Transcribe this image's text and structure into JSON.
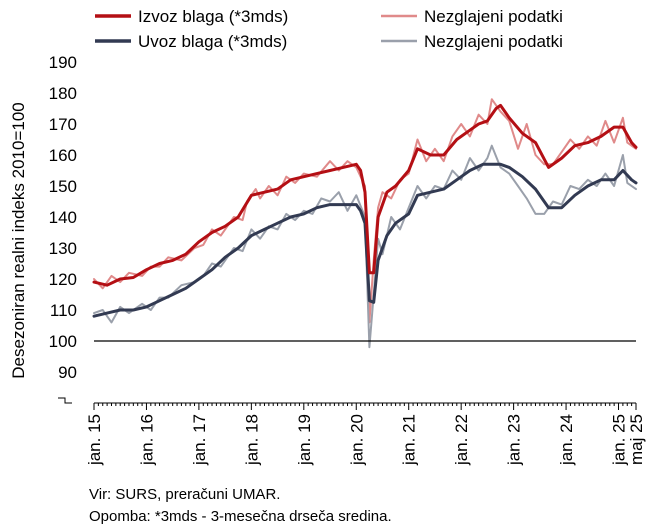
{
  "chart_data": {
    "type": "line",
    "xlabel": "",
    "ylabel": "Desezoniran realni indeks 2010=100",
    "ylim": [
      80,
      190
    ],
    "y_ticks": [
      90,
      100,
      110,
      120,
      130,
      140,
      150,
      160,
      170,
      180,
      190
    ],
    "y_axis_break": true,
    "reference_line": 100,
    "x_range": [
      "2015-01",
      "2025-05"
    ],
    "x_ticks": [
      {
        "date": "2015-01",
        "label": "jan. 15"
      },
      {
        "date": "2016-01",
        "label": "jan. 16"
      },
      {
        "date": "2017-01",
        "label": "jan. 17"
      },
      {
        "date": "2018-01",
        "label": "jan. 18"
      },
      {
        "date": "2019-01",
        "label": "jan. 19"
      },
      {
        "date": "2020-01",
        "label": "jan. 20"
      },
      {
        "date": "2021-01",
        "label": "jan. 21"
      },
      {
        "date": "2022-01",
        "label": "jan. 22"
      },
      {
        "date": "2023-01",
        "label": "jan. 23"
      },
      {
        "date": "2024-01",
        "label": "jan. 24"
      },
      {
        "date": "2025-01",
        "label": "jan. 25"
      },
      {
        "date": "2025-05",
        "label": "maj 25"
      }
    ],
    "grid": false,
    "legend_position": "top",
    "series_anchors": [
      {
        "name": "Izvoz blaga (*3mds)",
        "color": "#B40F14",
        "width": 3,
        "points": [
          [
            "2015-01",
            119
          ],
          [
            "2015-04",
            118
          ],
          [
            "2015-07",
            120
          ],
          [
            "2015-10",
            120.5
          ],
          [
            "2016-01",
            123
          ],
          [
            "2016-04",
            125
          ],
          [
            "2016-07",
            126
          ],
          [
            "2016-10",
            128
          ],
          [
            "2017-01",
            132
          ],
          [
            "2017-04",
            135
          ],
          [
            "2017-07",
            137
          ],
          [
            "2017-10",
            140
          ],
          [
            "2018-01",
            147
          ],
          [
            "2018-04",
            148
          ],
          [
            "2018-07",
            149
          ],
          [
            "2018-10",
            152
          ],
          [
            "2019-01",
            153
          ],
          [
            "2019-04",
            154
          ],
          [
            "2019-07",
            155
          ],
          [
            "2019-10",
            156
          ],
          [
            "2020-01",
            157
          ],
          [
            "2020-02",
            155
          ],
          [
            "2020-03",
            148
          ],
          [
            "2020-04",
            122
          ],
          [
            "2020-05",
            122
          ],
          [
            "2020-06",
            140
          ],
          [
            "2020-08",
            148
          ],
          [
            "2020-10",
            150
          ],
          [
            "2021-01",
            155
          ],
          [
            "2021-03",
            162
          ],
          [
            "2021-06",
            160
          ],
          [
            "2021-09",
            160
          ],
          [
            "2021-12",
            165
          ],
          [
            "2022-03",
            168
          ],
          [
            "2022-05",
            170
          ],
          [
            "2022-07",
            171
          ],
          [
            "2022-09",
            175
          ],
          [
            "2022-10",
            176
          ],
          [
            "2022-12",
            172
          ],
          [
            "2023-03",
            167
          ],
          [
            "2023-06",
            164
          ],
          [
            "2023-09",
            156
          ],
          [
            "2023-12",
            159
          ],
          [
            "2024-03",
            163
          ],
          [
            "2024-06",
            164
          ],
          [
            "2024-09",
            166
          ],
          [
            "2024-12",
            169
          ],
          [
            "2025-02",
            169
          ],
          [
            "2025-04",
            164
          ],
          [
            "2025-05",
            162.5
          ]
        ]
      },
      {
        "name": "Nezglajeni podatki",
        "color": "#E08A8A",
        "width": 2,
        "points": [
          [
            "2015-01",
            120
          ],
          [
            "2015-03",
            117
          ],
          [
            "2015-05",
            121
          ],
          [
            "2015-07",
            119
          ],
          [
            "2015-09",
            122
          ],
          [
            "2015-12",
            121
          ],
          [
            "2016-02",
            124
          ],
          [
            "2016-04",
            124
          ],
          [
            "2016-06",
            127
          ],
          [
            "2016-09",
            126
          ],
          [
            "2016-12",
            130
          ],
          [
            "2017-02",
            131
          ],
          [
            "2017-04",
            136
          ],
          [
            "2017-06",
            134
          ],
          [
            "2017-09",
            140
          ],
          [
            "2017-11",
            139
          ],
          [
            "2017-12",
            145
          ],
          [
            "2018-02",
            149
          ],
          [
            "2018-03",
            146
          ],
          [
            "2018-05",
            150
          ],
          [
            "2018-07",
            147
          ],
          [
            "2018-09",
            153
          ],
          [
            "2018-11",
            151
          ],
          [
            "2019-01",
            154
          ],
          [
            "2019-04",
            153
          ],
          [
            "2019-07",
            158
          ],
          [
            "2019-09",
            155
          ],
          [
            "2019-11",
            158
          ],
          [
            "2020-01",
            156
          ],
          [
            "2020-03",
            150
          ],
          [
            "2020-04",
            106
          ],
          [
            "2020-05",
            126
          ],
          [
            "2020-06",
            143
          ],
          [
            "2020-07",
            148
          ],
          [
            "2020-09",
            146
          ],
          [
            "2020-11",
            152
          ],
          [
            "2021-01",
            154
          ],
          [
            "2021-03",
            165
          ],
          [
            "2021-05",
            158
          ],
          [
            "2021-07",
            162
          ],
          [
            "2021-09",
            158
          ],
          [
            "2021-11",
            166
          ],
          [
            "2022-01",
            170
          ],
          [
            "2022-03",
            166
          ],
          [
            "2022-05",
            173
          ],
          [
            "2022-07",
            170
          ],
          [
            "2022-08",
            178
          ],
          [
            "2022-10",
            174
          ],
          [
            "2022-12",
            171
          ],
          [
            "2023-02",
            162
          ],
          [
            "2023-04",
            170
          ],
          [
            "2023-06",
            160
          ],
          [
            "2023-08",
            157
          ],
          [
            "2023-10",
            157
          ],
          [
            "2023-12",
            161
          ],
          [
            "2024-02",
            165
          ],
          [
            "2024-04",
            162
          ],
          [
            "2024-06",
            166
          ],
          [
            "2024-08",
            163
          ],
          [
            "2024-10",
            171
          ],
          [
            "2024-12",
            164
          ],
          [
            "2025-02",
            172
          ],
          [
            "2025-03",
            164
          ],
          [
            "2025-05",
            162
          ]
        ]
      },
      {
        "name": "Uvoz blaga (*3mds)",
        "color": "#323A52",
        "width": 3,
        "points": [
          [
            "2015-01",
            108
          ],
          [
            "2015-04",
            109
          ],
          [
            "2015-07",
            110
          ],
          [
            "2015-10",
            110
          ],
          [
            "2016-01",
            111
          ],
          [
            "2016-04",
            113
          ],
          [
            "2016-07",
            115
          ],
          [
            "2016-10",
            117
          ],
          [
            "2017-01",
            120
          ],
          [
            "2017-04",
            123
          ],
          [
            "2017-07",
            127
          ],
          [
            "2017-10",
            130
          ],
          [
            "2018-01",
            134
          ],
          [
            "2018-04",
            136
          ],
          [
            "2018-07",
            138
          ],
          [
            "2018-10",
            140
          ],
          [
            "2019-01",
            141
          ],
          [
            "2019-04",
            143
          ],
          [
            "2019-07",
            144
          ],
          [
            "2019-10",
            144
          ],
          [
            "2020-01",
            144
          ],
          [
            "2020-02",
            142
          ],
          [
            "2020-03",
            138
          ],
          [
            "2020-04",
            113
          ],
          [
            "2020-05",
            112.5
          ],
          [
            "2020-06",
            126
          ],
          [
            "2020-08",
            134
          ],
          [
            "2020-10",
            138
          ],
          [
            "2021-01",
            141
          ],
          [
            "2021-03",
            147
          ],
          [
            "2021-06",
            148
          ],
          [
            "2021-09",
            149
          ],
          [
            "2021-12",
            152
          ],
          [
            "2022-03",
            155
          ],
          [
            "2022-06",
            157
          ],
          [
            "2022-09",
            157
          ],
          [
            "2022-10",
            157
          ],
          [
            "2022-12",
            156
          ],
          [
            "2023-03",
            153
          ],
          [
            "2023-06",
            149
          ],
          [
            "2023-09",
            143
          ],
          [
            "2023-12",
            143
          ],
          [
            "2024-03",
            147
          ],
          [
            "2024-06",
            150
          ],
          [
            "2024-09",
            152
          ],
          [
            "2024-12",
            152
          ],
          [
            "2025-02",
            155
          ],
          [
            "2025-04",
            152
          ],
          [
            "2025-05",
            151
          ]
        ]
      },
      {
        "name": "Nezglajeni podatki",
        "color": "#9AA0AB",
        "width": 2,
        "points": [
          [
            "2015-01",
            109
          ],
          [
            "2015-03",
            110
          ],
          [
            "2015-05",
            106
          ],
          [
            "2015-07",
            111
          ],
          [
            "2015-09",
            109
          ],
          [
            "2015-12",
            112
          ],
          [
            "2016-02",
            110
          ],
          [
            "2016-04",
            114
          ],
          [
            "2016-06",
            114
          ],
          [
            "2016-09",
            118
          ],
          [
            "2016-12",
            119
          ],
          [
            "2017-02",
            121
          ],
          [
            "2017-04",
            125
          ],
          [
            "2017-06",
            124
          ],
          [
            "2017-09",
            130
          ],
          [
            "2017-11",
            129
          ],
          [
            "2018-01",
            136
          ],
          [
            "2018-03",
            133
          ],
          [
            "2018-05",
            137
          ],
          [
            "2018-07",
            136
          ],
          [
            "2018-09",
            141
          ],
          [
            "2018-11",
            139
          ],
          [
            "2019-01",
            142
          ],
          [
            "2019-03",
            141
          ],
          [
            "2019-05",
            146
          ],
          [
            "2019-07",
            145
          ],
          [
            "2019-09",
            148
          ],
          [
            "2019-11",
            142
          ],
          [
            "2020-01",
            147
          ],
          [
            "2020-03",
            140
          ],
          [
            "2020-04",
            98
          ],
          [
            "2020-05",
            115
          ],
          [
            "2020-06",
            133
          ],
          [
            "2020-07",
            128
          ],
          [
            "2020-09",
            140
          ],
          [
            "2020-11",
            136
          ],
          [
            "2021-01",
            143
          ],
          [
            "2021-03",
            150
          ],
          [
            "2021-05",
            146
          ],
          [
            "2021-07",
            150
          ],
          [
            "2021-09",
            149
          ],
          [
            "2021-11",
            155
          ],
          [
            "2022-01",
            152
          ],
          [
            "2022-03",
            159
          ],
          [
            "2022-05",
            155
          ],
          [
            "2022-07",
            159
          ],
          [
            "2022-08",
            163
          ],
          [
            "2022-10",
            156
          ],
          [
            "2022-12",
            154
          ],
          [
            "2023-02",
            150
          ],
          [
            "2023-04",
            146
          ],
          [
            "2023-06",
            141
          ],
          [
            "2023-08",
            141
          ],
          [
            "2023-10",
            145
          ],
          [
            "2023-12",
            144
          ],
          [
            "2024-02",
            150
          ],
          [
            "2024-04",
            149
          ],
          [
            "2024-06",
            152
          ],
          [
            "2024-08",
            150
          ],
          [
            "2024-10",
            154
          ],
          [
            "2024-12",
            150
          ],
          [
            "2025-02",
            160
          ],
          [
            "2025-03",
            151
          ],
          [
            "2025-05",
            149
          ]
        ]
      }
    ]
  },
  "source_note": "Vir: SURS, preračuni UMAR.",
  "footnote": "Opomba: *3mds - 3-mesečna drseča sredina."
}
